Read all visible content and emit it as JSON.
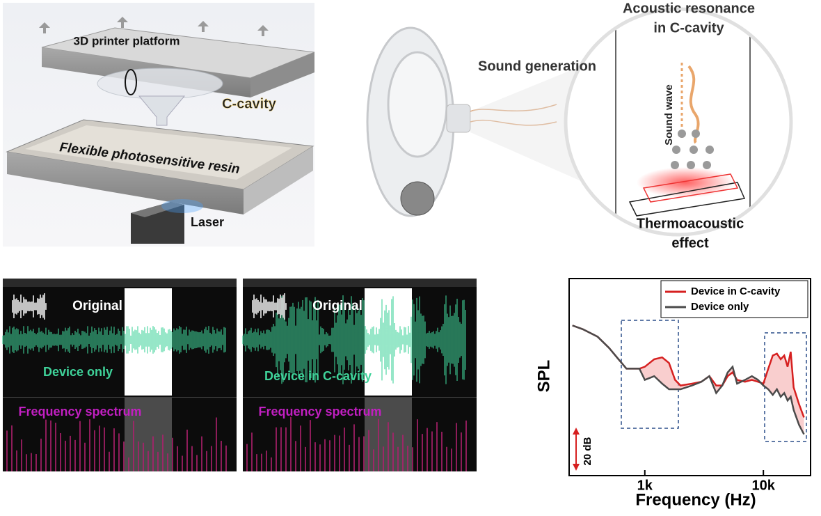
{
  "fabrication": {
    "platform_label": "3D printer platform",
    "cavity_label": "C-cavity",
    "resin_label": "Flexible photosensitive resin",
    "laser_label": "Laser"
  },
  "mechanism": {
    "sound_label": "Sound generation",
    "resonance_title": [
      "Acoustic resonance",
      "in C-cavity"
    ],
    "wave_label": "Sound wave",
    "effect_label": [
      "Thermoacoustic",
      "effect"
    ]
  },
  "recordings": [
    {
      "original_label": "Original",
      "device_label": "Device only",
      "spectrum_label": "Frequency spectrum"
    },
    {
      "original_label": "Original",
      "device_label": "Device in C-cavity",
      "spectrum_label": "Frequency spectrum"
    }
  ],
  "chart_data": {
    "type": "line",
    "x_label": "Frequency (Hz)",
    "y_label": "SPL",
    "scale_bar_label": "20 dB",
    "log_x": true,
    "xlim": [
      230,
      25000
    ],
    "xticks": [
      {
        "value": 1000,
        "label": "1k"
      },
      {
        "value": 10000,
        "label": "10k"
      }
    ],
    "ylim": [
      0,
      105
    ],
    "legend": "upper right",
    "fill_between": true,
    "x": [
      245,
      300,
      400,
      500,
      600,
      700,
      800,
      900,
      1000,
      1200,
      1400,
      1600,
      1800,
      2000,
      2500,
      3000,
      3500,
      4000,
      4500,
      5000,
      5500,
      6000,
      7000,
      8000,
      9000,
      10000,
      11000,
      12000,
      13000,
      14000,
      15000,
      16000,
      17000,
      18000,
      20000,
      22000
    ],
    "series": [
      {
        "name": "Device in C-cavity",
        "color": "#d62020",
        "values": [
          80,
          78,
          74,
          68,
          62,
          57,
          57,
          57,
          58,
          62,
          63,
          60,
          51,
          48,
          49,
          50,
          53,
          48,
          48,
          53,
          55,
          51,
          50,
          51,
          50,
          49,
          57,
          64,
          65,
          62,
          64,
          58,
          66,
          47,
          38,
          31
        ]
      },
      {
        "name": "Device only",
        "color": "#4a4a4a",
        "values": [
          80,
          78,
          74,
          68,
          62,
          57,
          57,
          57,
          51,
          53,
          49,
          46,
          46,
          46,
          48,
          50,
          53,
          44,
          48,
          55,
          58,
          49,
          51,
          53,
          51,
          48,
          46,
          43,
          46,
          42,
          44,
          40,
          42,
          35,
          27,
          22
        ]
      }
    ]
  }
}
